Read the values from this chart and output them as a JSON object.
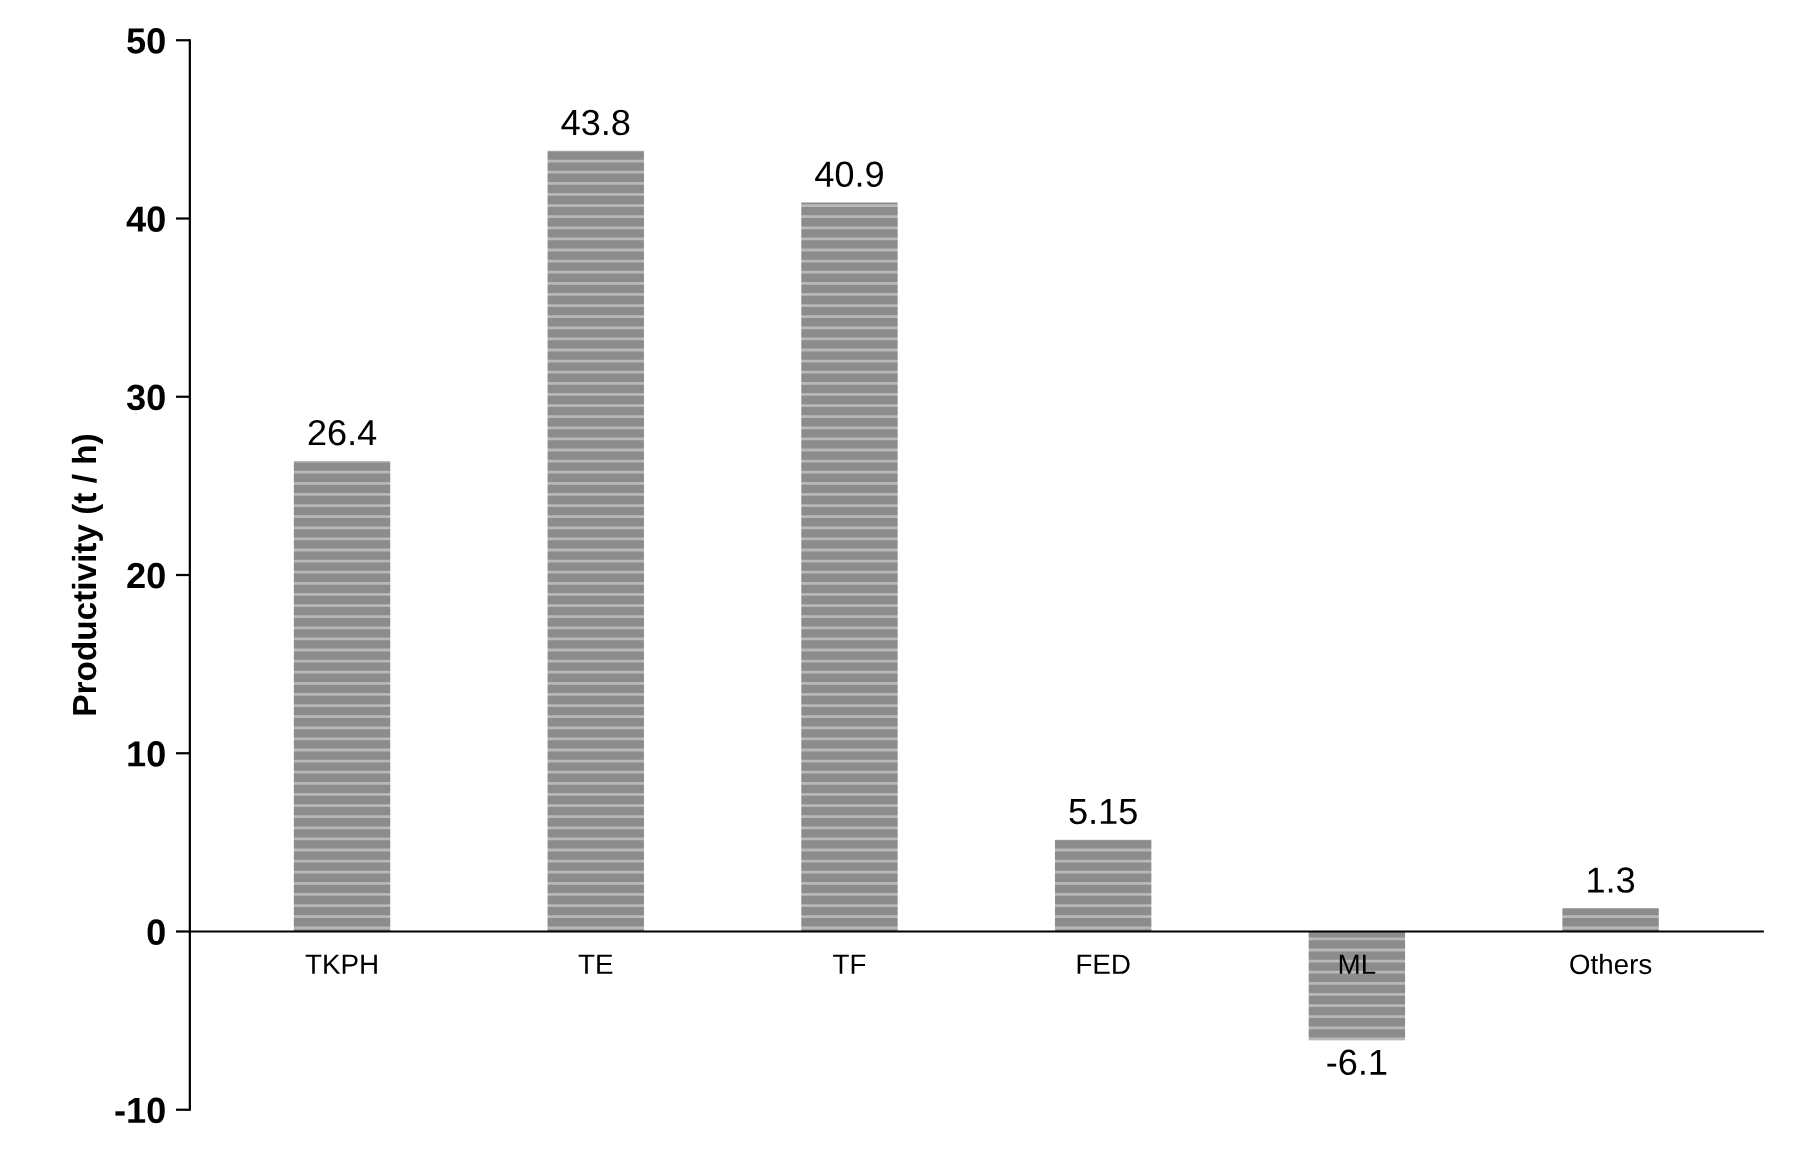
{
  "chart_data": {
    "type": "bar",
    "ylabel": "Productivity (t / h)",
    "categories": [
      "TKPH",
      "TE",
      "TF",
      "FED",
      "ML",
      "Others"
    ],
    "values": [
      26.4,
      43.8,
      40.9,
      5.15,
      -6.1,
      1.3
    ],
    "color": "#8c8c8c",
    "ylim": [
      -10,
      50
    ],
    "yticks": [
      -10,
      0,
      10,
      20,
      30,
      40,
      50
    ],
    "data_labels": true,
    "grid": false,
    "legend": false
  }
}
